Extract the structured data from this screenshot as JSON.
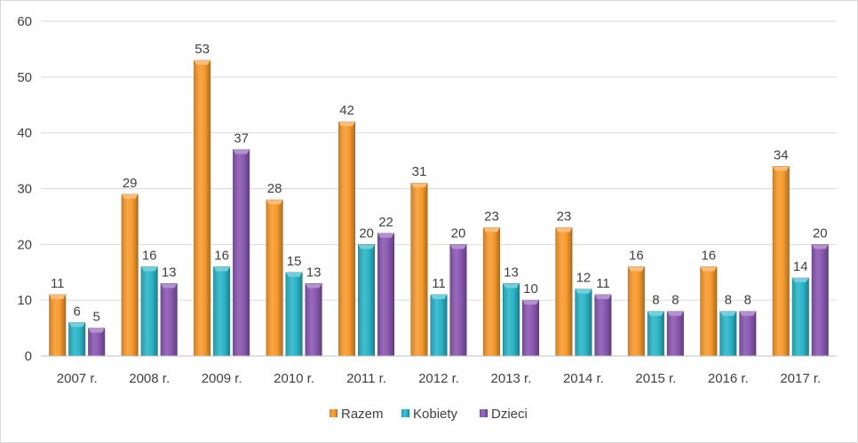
{
  "chart_data": {
    "type": "bar",
    "title": "",
    "xlabel": "",
    "ylabel": "",
    "ylim": [
      0,
      60
    ],
    "yticks": [
      0,
      10,
      20,
      30,
      40,
      50,
      60
    ],
    "grid": true,
    "legend_position": "bottom",
    "categories": [
      "2007 r.",
      "2008 r.",
      "2009 r.",
      "2010 r.",
      "2011 r.",
      "2012 r.",
      "2013 r.",
      "2014 r.",
      "2015 r.",
      "2016 r.",
      "2017 r."
    ],
    "series": [
      {
        "name": "Razem",
        "color": "#F79A2E",
        "values": [
          11,
          29,
          53,
          28,
          42,
          31,
          23,
          23,
          16,
          16,
          34
        ]
      },
      {
        "name": "Kobiety",
        "color": "#2BB5C8",
        "values": [
          6,
          16,
          16,
          15,
          20,
          11,
          13,
          12,
          8,
          8,
          14
        ]
      },
      {
        "name": "Dzieci",
        "color": "#8A58B2",
        "values": [
          5,
          13,
          37,
          13,
          22,
          20,
          10,
          11,
          8,
          8,
          20
        ]
      }
    ]
  }
}
